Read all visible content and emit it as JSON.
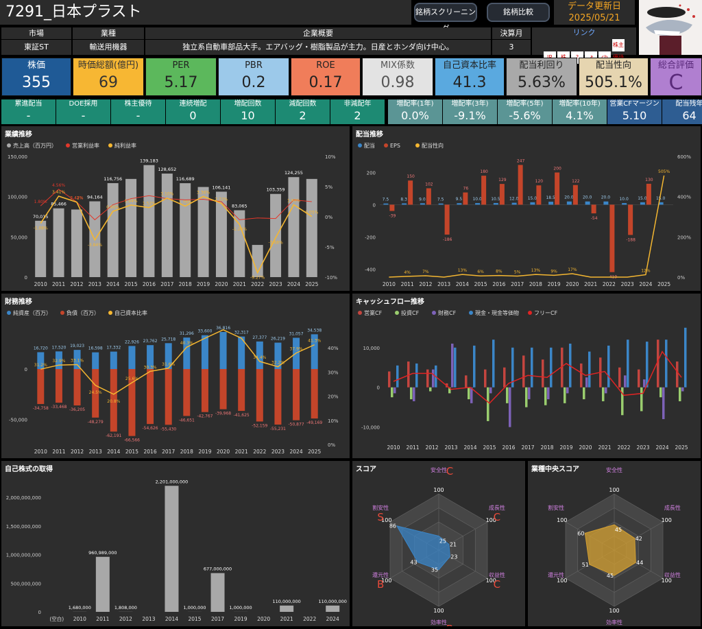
{
  "header": {
    "title": "7291_日本プラスト",
    "nav": [
      "銘柄スクリーニング",
      "銘柄比較"
    ],
    "update_label": "データ更新日",
    "update_date": "2025/05/21"
  },
  "info": {
    "market_label": "市場",
    "market": "東証ST",
    "industry_label": "業種",
    "industry": "輸送用機器",
    "overview_label": "企業概要",
    "overview": "独立系自動車部品大手。エアバッグ・樹脂製品が主力。日産とホンダ向け中心。",
    "fiscal_label": "決算月",
    "fiscal": "3",
    "link_label": "リンク",
    "link_icons": [
      "IR",
      "株",
      "?",
      "↗",
      "ch",
      "株主優待"
    ]
  },
  "kpis": [
    {
      "label": "株価",
      "value": "355",
      "bg": "#1f5a96",
      "fg": "#ffffff"
    },
    {
      "label": "時価総額(億円)",
      "value": "69",
      "bg": "#f7b733",
      "fg": "#333333"
    },
    {
      "label": "PER",
      "value": "5.17",
      "bg": "#5cb85c",
      "fg": "#222222"
    },
    {
      "label": "PBR",
      "value": "0.2",
      "bg": "#9cc9ea",
      "fg": "#222222"
    },
    {
      "label": "ROE",
      "value": "0.17",
      "bg": "#f07d5a",
      "fg": "#222222"
    },
    {
      "label": "MIX係数",
      "value": "0.98",
      "bg": "#e3e3e3",
      "fg": "#555555"
    },
    {
      "label": "自己資本比率",
      "value": "41.3",
      "bg": "#5aa9df",
      "fg": "#222222"
    },
    {
      "label": "配当利回り",
      "value": "5.63%",
      "bg": "#a9a9a9",
      "fg": "#222222"
    },
    {
      "label": "配当性向",
      "value": "505.1%",
      "bg": "#e6d5b0",
      "fg": "#222222"
    },
    {
      "label": "総合評価",
      "value": "C",
      "bg": "#b07fd0",
      "fg": "#5a2a7a"
    }
  ],
  "small": [
    {
      "label": "累進配当",
      "value": "-",
      "bg": "#1d8a73"
    },
    {
      "label": "DOE採用",
      "value": "-",
      "bg": "#1d8a73"
    },
    {
      "label": "株主優待",
      "value": "-",
      "bg": "#1d8a73"
    },
    {
      "label": "連続増配",
      "value": "0",
      "bg": "#1d8a73"
    },
    {
      "label": "増配回数",
      "value": "10",
      "bg": "#1d8a73"
    },
    {
      "label": "減配回数",
      "value": "2",
      "bg": "#1d8a73"
    },
    {
      "label": "非減配年",
      "value": "2",
      "bg": "#1d8a73"
    },
    {
      "label": "増配率(1年)",
      "value": "0.0%",
      "bg": "#5b9595"
    },
    {
      "label": "増配率(3年)",
      "value": "-9.1%",
      "bg": "#5b9595"
    },
    {
      "label": "増配率(5年)",
      "value": "-5.6%",
      "bg": "#5b9595"
    },
    {
      "label": "増配率(10年)",
      "value": "4.1%",
      "bg": "#5b9595"
    },
    {
      "label": "営業CFマージン",
      "value": "5.10",
      "bg": "#2e5d92"
    },
    {
      "label": "配当残年",
      "value": "64",
      "bg": "#2e5d92"
    }
  ],
  "chart_data": [
    {
      "id": "perf",
      "type": "bar",
      "title": "業績推移",
      "categories": [
        "2010",
        "2011",
        "2012",
        "2013",
        "2014",
        "2015",
        "2016",
        "2017",
        "2018",
        "2019",
        "2020",
        "2021",
        "2022",
        "2023",
        "2024",
        "2025"
      ],
      "legend": [
        "売上高（百万円）",
        "営業利益率",
        "純利益率"
      ],
      "series": [
        {
          "name": "売上高（百万円）",
          "values": [
            70015,
            85466,
            84000,
            94164,
            116756,
            122000,
            139183,
            128652,
            116689,
            112000,
            106141,
            83065,
            40000,
            103359,
            124255,
            122000
          ],
          "color": "#a8a8a8"
        },
        {
          "name": "営業利益率",
          "values": [
            1.8,
            4.56,
            2.44,
            -0.5,
            2.0,
            3.0,
            3.5,
            3.0,
            2.8,
            2.9,
            2.5,
            -0.5,
            -0.2,
            -0.3,
            2.8,
            2.5
          ],
          "color": "#e2382b"
        },
        {
          "name": "純利益率",
          "values": [
            -1.08,
            3.41,
            2.42,
            -3.84,
            0.9,
            1.94,
            1.52,
            3.1,
            1.76,
            3.36,
            2.22,
            -1.26,
            -9.27,
            -3.48,
            1.99,
            0.05
          ],
          "color": "#f5b731"
        }
      ],
      "bar_labels": [
        "70,015",
        "85,466",
        "",
        "94,164",
        "116,756",
        "",
        "139,183",
        "128,652",
        "116,689",
        "",
        "106,141",
        "83,065",
        "",
        "103,359",
        "124,255",
        ""
      ],
      "npm_labels": [
        "-1.08%",
        "3.41%",
        "2.42%",
        "-3.84%",
        "0.90%",
        "1.94%",
        "1.52%",
        "3.10%",
        "1.76%",
        "3.36%",
        "2.22%",
        "-1.26%",
        "-9.27%",
        "-3.48%",
        "1.99%",
        "0.05%"
      ],
      "opm_labels": [
        "1.80%",
        "4.56%",
        "2.44%",
        "",
        "",
        "",
        "",
        "",
        "",
        "",
        "",
        "",
        "",
        "",
        "",
        ""
      ],
      "yticks": [
        "0",
        "50,000",
        "100,000",
        "150,000"
      ],
      "y2ticks": [
        "-10%",
        "-5%",
        "0%",
        "5%",
        "10%"
      ],
      "ylim": [
        0,
        150000
      ],
      "y2lim": [
        -10,
        10
      ]
    },
    {
      "id": "div",
      "type": "bar",
      "title": "配当推移",
      "categories": [
        "2010",
        "2011",
        "2012",
        "2013",
        "2014",
        "2015",
        "2016",
        "2017",
        "2018",
        "2019",
        "2020",
        "2021",
        "2022",
        "2023",
        "2024",
        "2025"
      ],
      "legend": [
        "配当",
        "EPS",
        "配当性向"
      ],
      "series": [
        {
          "name": "配当",
          "values": [
            7.5,
            8.3,
            9.0,
            7.5,
            9.5,
            10.0,
            10.5,
            12.0,
            15.0,
            18.5,
            20.0,
            20.0,
            20.0,
            10.0,
            15.0,
            15.0
          ],
          "color": "#3b86c8"
        },
        {
          "name": "EPS",
          "values": [
            -39,
            150,
            102,
            -186,
            76,
            180,
            129,
            247,
            120,
            200,
            122,
            -54,
            -419,
            -188,
            130,
            0
          ],
          "color": "#c4452a"
        },
        {
          "name": "配当性向",
          "values": [
            0,
            4,
            7,
            0,
            13,
            6,
            8,
            5,
            13,
            9,
            17,
            0,
            0,
            0,
            12,
            505
          ],
          "color": "#f5b731"
        }
      ],
      "div_labels": [
        "7.5",
        "8.3",
        "9.0",
        "7.5",
        "9.5",
        "10.0",
        "10.5",
        "12.0",
        "15.0",
        "18.5",
        "20.0",
        "20.0",
        "20.0",
        "10.0",
        "15.0",
        "15.0"
      ],
      "eps_labels": [
        "-39",
        "150",
        "102",
        "-186",
        "76",
        "180",
        "129",
        "247",
        "120",
        "200",
        "122",
        "-54",
        "-419",
        "-188",
        "130",
        ""
      ],
      "payout_labels": [
        "",
        "4%",
        "7%",
        "",
        "13%",
        "6%",
        "8%",
        "5%",
        "13%",
        "9%",
        "17%",
        "",
        "",
        "",
        "12%",
        "505%"
      ],
      "yticks": [
        "-400",
        "-200",
        "0",
        "200"
      ],
      "y2ticks": [
        "0%",
        "200%",
        "400%",
        "600%"
      ],
      "ylim": [
        -450,
        300
      ],
      "y2lim": [
        0,
        600
      ]
    },
    {
      "id": "fin",
      "type": "bar",
      "title": "財務推移",
      "categories": [
        "2010",
        "2011",
        "2012",
        "2013",
        "2014",
        "2015",
        "2016",
        "2017",
        "2018",
        "2019",
        "2020",
        "2021",
        "2022",
        "2023",
        "2024",
        "2025"
      ],
      "legend": [
        "純資産（百万）",
        "負債（百万）",
        "自己資本比率"
      ],
      "series": [
        {
          "name": "純資産（百万）",
          "values": [
            16720,
            17520,
            19023,
            16598,
            17332,
            22926,
            23762,
            25718,
            31296,
            33600,
            36816,
            32317,
            27377,
            26219,
            31057,
            34538
          ],
          "color": "#3b86c8"
        },
        {
          "name": "負債（百万）",
          "values": [
            -34758,
            -33468,
            -36205,
            -48279,
            -62191,
            -66566,
            -54626,
            -55430,
            -46651,
            -42767,
            -39968,
            -41625,
            -52159,
            -55231,
            -50877,
            -49169
          ],
          "color": "#c4452a"
        },
        {
          "name": "自己資本比率",
          "values": [
            31.2,
            32.9,
            33.1,
            24.5,
            20.8,
            25.6,
            30.3,
            31.6,
            40.3,
            44.0,
            47.5,
            44.0,
            34.4,
            32.2,
            37.9,
            41.3
          ],
          "color": "#f5b731"
        }
      ],
      "pos_labels": [
        "16,720",
        "17,520",
        "19,023",
        "16,598",
        "17,332",
        "22,926",
        "23,762",
        "25,718",
        "31,296",
        "33,600",
        "36,816",
        "32,317",
        "27,377",
        "26,219",
        "31,057",
        "34,538"
      ],
      "neg_labels": [
        "-34,758",
        "-33,468",
        "-36,205",
        "-48,279",
        "-62,191",
        "-66,566",
        "-54,626",
        "-55,430",
        "-46,651",
        "-42,767",
        "-39,968",
        "-41,625",
        "-52,159",
        "-55,231",
        "-50,877",
        "-49,169"
      ],
      "ratio_labels": [
        "31.2%",
        "32.9%",
        "33.1%",
        "24.5%",
        "20.8%",
        "25.6%",
        "30.3%",
        "31.6%",
        "40.3%",
        "",
        "",
        "",
        "34.4%",
        "32.2%",
        "37.9%",
        "41.3%"
      ],
      "yticks": [
        "-50,000",
        "0"
      ],
      "y2ticks": [
        "0%",
        "10%",
        "20%",
        "30%",
        "40%"
      ],
      "ylim": [
        -75000,
        45000
      ],
      "y2lim": [
        0,
        50
      ]
    },
    {
      "id": "cf",
      "type": "bar",
      "title": "キャッシュフロー推移",
      "categories": [
        "2010",
        "2011",
        "2012",
        "2013",
        "2014",
        "2015",
        "2016",
        "2017",
        "2018",
        "2019",
        "2020",
        "2021",
        "2022",
        "2023",
        "2024",
        "2025"
      ],
      "legend": [
        "営業CF",
        "投資CF",
        "財務CF",
        "現金・現金等価物",
        "フリーCF"
      ],
      "series": [
        {
          "name": "営業CF",
          "values": [
            4000,
            6500,
            4500,
            1000,
            3000,
            4500,
            5000,
            8000,
            7000,
            10000,
            6000,
            7500,
            5000,
            4500,
            12000,
            6500
          ],
          "color": "#c4453f"
        },
        {
          "name": "投資CF",
          "values": [
            -2500,
            -3000,
            -1000,
            -1500,
            -3000,
            -8500,
            -4000,
            -5000,
            -4500,
            -4000,
            -3000,
            -3500,
            -7000,
            -6000,
            -2500,
            -3500
          ],
          "color": "#9acd6e"
        },
        {
          "name": "財務CF",
          "values": [
            -1500,
            -3500,
            4500,
            11000,
            -4000,
            -1500,
            -10000,
            -3000,
            -3000,
            -1500,
            2500,
            -1500,
            3000,
            2000,
            -8000,
            -1000
          ],
          "color": "#7d62b8"
        },
        {
          "name": "現金・現金等価物",
          "values": [
            5500,
            6000,
            5500,
            10000,
            10500,
            12000,
            10000,
            10000,
            10000,
            11000,
            9000,
            10500,
            12000,
            11500,
            12000,
            15000
          ],
          "color": "#3b86c8"
        },
        {
          "name": "フリーCF",
          "values": [
            1500,
            3500,
            3500,
            -500,
            0,
            -4000,
            1000,
            3000,
            2500,
            6000,
            3000,
            4000,
            -2000,
            -1500,
            9000,
            2500
          ],
          "color": "#e02424"
        }
      ],
      "yticks": [
        "-10,000",
        "0",
        "10,000"
      ],
      "ylim": [
        -13000,
        16000
      ]
    },
    {
      "id": "buyback",
      "type": "bar",
      "title": "自己株式の取得",
      "categories": [
        "(空白)",
        "2010",
        "2011",
        "2012",
        "2013",
        "2014",
        "2015",
        "2017",
        "2019",
        "2020",
        "2021",
        "2022",
        "2024"
      ],
      "values": [
        0,
        1680000,
        960989000,
        1808000,
        0,
        2201000000,
        1000000,
        677000000,
        1000000,
        0,
        110000000,
        0,
        110000000
      ],
      "labels": [
        "",
        "1,680,000",
        "960,989,000",
        "1,808,000",
        "",
        "2,201,000,000",
        "1,000,000",
        "677,000,000",
        "1,000,000",
        "",
        "110,000,000",
        "",
        "110,000,000"
      ],
      "yticks": [
        "0",
        "500,000,000",
        "1,000,000,000",
        "1,500,000,000",
        "2,000,000,000"
      ],
      "ylim": [
        0,
        2300000000
      ]
    },
    {
      "id": "score",
      "type": "radar",
      "title": "スコア",
      "axes": [
        "安全性",
        "成長性",
        "収益性",
        "効率性",
        "還元性",
        "割安性"
      ],
      "values": [
        25,
        21,
        23,
        35,
        43,
        86
      ],
      "max": 100,
      "grades": [
        "C",
        "C",
        "C",
        "B",
        "B",
        "S"
      ],
      "color": "#3b86c8"
    },
    {
      "id": "indscore",
      "type": "radar",
      "title": "業種中央スコア",
      "axes": [
        "安全性",
        "成長性",
        "収益性",
        "効率性",
        "還元性",
        "割安性"
      ],
      "values": [
        45,
        42,
        44,
        45,
        51,
        60
      ],
      "max": 100,
      "color": "#d4a032"
    }
  ]
}
